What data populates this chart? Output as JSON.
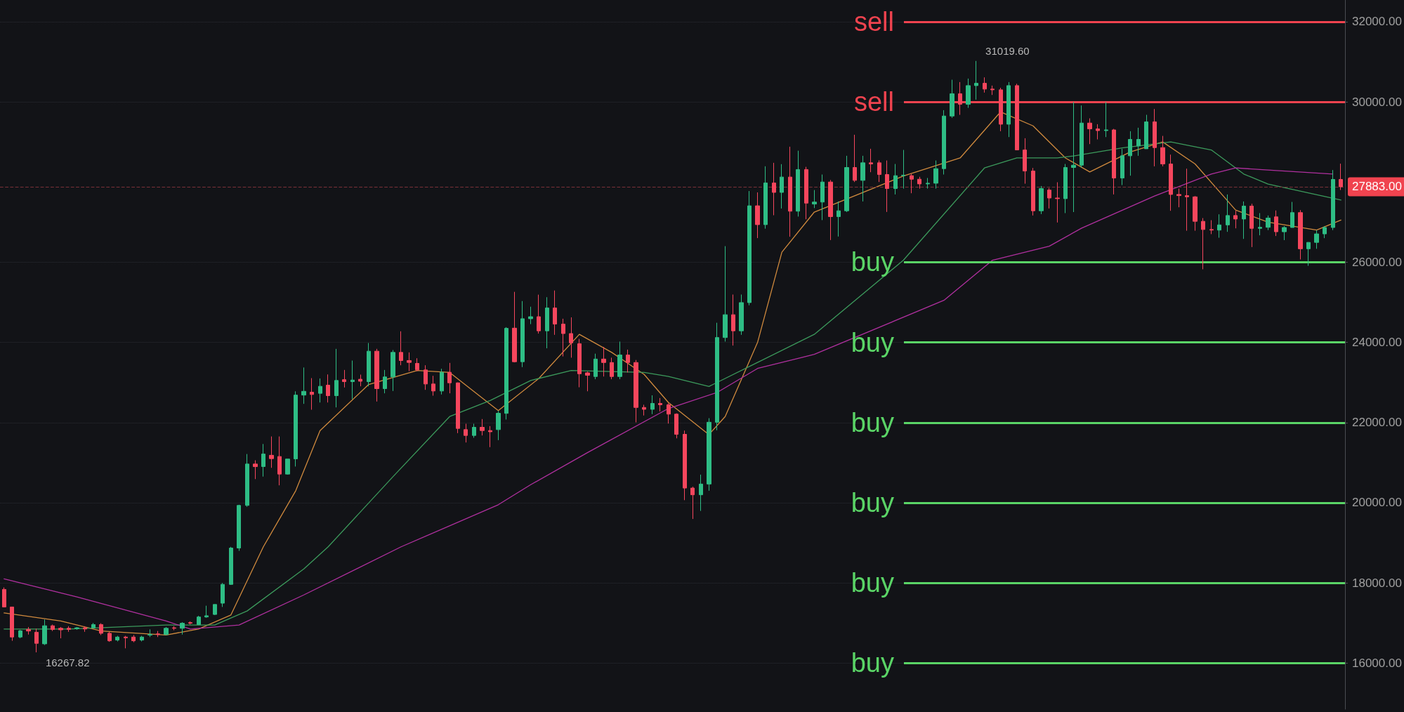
{
  "chart_data": {
    "type": "candlestick",
    "categories": [
      null,
      null,
      null,
      null,
      null,
      null,
      null,
      null,
      null,
      null,
      null,
      null,
      null,
      null,
      null,
      null,
      null,
      null,
      null,
      null,
      null,
      null,
      null,
      null,
      null,
      null,
      null,
      null,
      null,
      null,
      null,
      null,
      null,
      null,
      null,
      null,
      null,
      null,
      null,
      null,
      null,
      null,
      null,
      null,
      null,
      null,
      null,
      null,
      null,
      null,
      null,
      null,
      null,
      null,
      null,
      null,
      null,
      null,
      null,
      null,
      null,
      null,
      null,
      null,
      null,
      null,
      null,
      null,
      null,
      null,
      null,
      null,
      null,
      null,
      null,
      null,
      null,
      null,
      null,
      null,
      null,
      null,
      null,
      null,
      null,
      null,
      null,
      null,
      null,
      null,
      null,
      null,
      null,
      null,
      null,
      null,
      null,
      null,
      null,
      null,
      null,
      null,
      null,
      null,
      null,
      null,
      null,
      null,
      null,
      null,
      null,
      null,
      null,
      null,
      null,
      null,
      null,
      null,
      null,
      null,
      null,
      null,
      null,
      null,
      null,
      null,
      null,
      null,
      null,
      null,
      null,
      null,
      null,
      null,
      null,
      null,
      null,
      null,
      null,
      null,
      null,
      null,
      null,
      null,
      null,
      null,
      null,
      null,
      null,
      null,
      null,
      null,
      null,
      null,
      null,
      null,
      null,
      null,
      null,
      null,
      null,
      null,
      null,
      null,
      null,
      null
    ],
    "ohlc": [
      [
        17838,
        17888,
        17400,
        17400
      ],
      [
        17400,
        17400,
        16556,
        16650
      ],
      [
        16650,
        16830,
        16620,
        16806
      ],
      [
        16840,
        16900,
        16712,
        16800
      ],
      [
        16770,
        16860,
        16267.82,
        16493
      ],
      [
        16480,
        17087,
        16450,
        16931
      ],
      [
        16931,
        16960,
        16800,
        16837
      ],
      [
        16868,
        16900,
        16618,
        16830
      ],
      [
        16868,
        16920,
        16780,
        16840
      ],
      [
        16860,
        16900,
        16830,
        16880
      ],
      [
        16880,
        16920,
        16780,
        16850
      ],
      [
        16880,
        17000,
        16870,
        16962
      ],
      [
        16962,
        16994,
        16700,
        16743
      ],
      [
        16743,
        16780,
        16530,
        16556
      ],
      [
        16574,
        16680,
        16540,
        16650
      ],
      [
        16650,
        16680,
        16368,
        16630
      ],
      [
        16650,
        16700,
        16520,
        16556
      ],
      [
        16574,
        16680,
        16540,
        16650
      ],
      [
        16700,
        16840,
        16650,
        16712
      ],
      [
        16730,
        16800,
        16650,
        16712
      ],
      [
        16712,
        16900,
        16700,
        16868
      ],
      [
        16880,
        16920,
        16820,
        16868
      ],
      [
        16868,
        17020,
        16712,
        16994
      ],
      [
        17010,
        17040,
        16960,
        16994
      ],
      [
        16962,
        17180,
        16950,
        17150
      ],
      [
        17150,
        17431,
        17130,
        17181
      ],
      [
        17213,
        17462,
        17200,
        17462
      ],
      [
        17494,
        18000,
        17400,
        17963
      ],
      [
        17963,
        18900,
        17950,
        18870
      ],
      [
        18870,
        19950,
        18800,
        19933
      ],
      [
        19933,
        21215,
        19900,
        20965
      ],
      [
        20965,
        21059,
        20590,
        20900
      ],
      [
        20903,
        21465,
        20652,
        21215
      ],
      [
        21184,
        21653,
        20871,
        21100
      ],
      [
        21153,
        21653,
        20434,
        20715
      ],
      [
        20715,
        21090,
        20700,
        21090
      ],
      [
        21093,
        22779,
        20903,
        22685
      ],
      [
        22685,
        23373,
        22466,
        22779
      ],
      [
        22758,
        23108,
        22320,
        22700
      ],
      [
        22729,
        23100,
        22500,
        22904
      ],
      [
        22933,
        23200,
        22500,
        22670
      ],
      [
        22670,
        23838,
        22378,
        23050
      ],
      [
        23070,
        23312,
        22875,
        23020
      ],
      [
        23020,
        23546,
        22583,
        23060
      ],
      [
        23080,
        23196,
        22904,
        23030
      ],
      [
        23020,
        23984,
        22904,
        23780
      ],
      [
        23780,
        23838,
        22524,
        22846
      ],
      [
        22846,
        23312,
        22729,
        23137
      ],
      [
        23137,
        23809,
        22787,
        23750
      ],
      [
        23750,
        24276,
        23429,
        23546
      ],
      [
        23546,
        23750,
        23283,
        23500
      ],
      [
        23476,
        23604,
        23283,
        23312
      ],
      [
        23312,
        23429,
        22816,
        22962
      ],
      [
        22962,
        23166,
        22670,
        22787
      ],
      [
        22787,
        23342,
        22700,
        23254
      ],
      [
        23254,
        23488,
        22729,
        22991
      ],
      [
        22991,
        23000,
        21736,
        21853
      ],
      [
        21824,
        21970,
        21503,
        21678
      ],
      [
        21678,
        21970,
        21620,
        21882
      ],
      [
        21882,
        22087,
        21678,
        21800
      ],
      [
        21800,
        21911,
        21386,
        21770
      ],
      [
        21824,
        22291,
        21561,
        22232
      ],
      [
        22230,
        24380,
        22076,
        24350
      ],
      [
        24355,
        25260,
        23500,
        23517
      ],
      [
        23517,
        25030,
        23383,
        24590
      ],
      [
        24590,
        24890,
        24455,
        24640
      ],
      [
        24640,
        25190,
        24220,
        24288
      ],
      [
        24288,
        25127,
        23852,
        24858
      ],
      [
        24858,
        25294,
        24188,
        24456
      ],
      [
        24456,
        24590,
        23650,
        24220
      ],
      [
        24220,
        24624,
        23618,
        23987
      ],
      [
        23967,
        24087,
        22880,
        23216
      ],
      [
        23240,
        23270,
        22780,
        23180
      ],
      [
        23148,
        23718,
        23081,
        23584
      ],
      [
        23584,
        23886,
        23148,
        23497
      ],
      [
        23497,
        23618,
        23081,
        23148
      ],
      [
        23148,
        24020,
        23081,
        23685
      ],
      [
        23685,
        23819,
        23249,
        23497
      ],
      [
        23497,
        23560,
        22004,
        22377
      ],
      [
        22377,
        22444,
        22176,
        22330
      ],
      [
        22330,
        22679,
        22210,
        22478
      ],
      [
        22478,
        22612,
        22277,
        22444
      ],
      [
        22444,
        22480,
        21975,
        22210
      ],
      [
        22210,
        22230,
        21606,
        21707
      ],
      [
        21707,
        21800,
        20064,
        20366
      ],
      [
        20366,
        20400,
        19595,
        20198
      ],
      [
        20198,
        20701,
        19796,
        20466
      ],
      [
        20466,
        22109,
        20299,
        22008
      ],
      [
        22008,
        24489,
        21808,
        24121
      ],
      [
        24121,
        26400,
        24020,
        24690
      ],
      [
        24690,
        25193,
        23920,
        24288
      ],
      [
        24288,
        25193,
        24188,
        24992
      ],
      [
        24992,
        27775,
        24925,
        27406
      ],
      [
        27406,
        27741,
        26601,
        26937
      ],
      [
        26937,
        28392,
        26836,
        27976
      ],
      [
        27976,
        28479,
        27171,
        27741
      ],
      [
        27741,
        28445,
        27339,
        28124
      ],
      [
        28124,
        28881,
        26635,
        27272
      ],
      [
        27272,
        28781,
        27138,
        28311
      ],
      [
        28311,
        28378,
        27071,
        27473
      ],
      [
        27450,
        27800,
        27350,
        27500
      ],
      [
        27500,
        28187,
        27050,
        28000
      ],
      [
        28000,
        28050,
        26552,
        27136
      ],
      [
        27136,
        27515,
        26640,
        27282
      ],
      [
        27282,
        28654,
        27250,
        28362
      ],
      [
        28362,
        29179,
        28000,
        28041
      ],
      [
        28041,
        28654,
        27515,
        28479
      ],
      [
        28479,
        28829,
        28245,
        28450
      ],
      [
        28479,
        28540,
        28000,
        28187
      ],
      [
        28187,
        28537,
        27253,
        27836
      ],
      [
        27836,
        28450,
        27690,
        28158
      ],
      [
        28158,
        28800,
        27835,
        28170
      ],
      [
        28158,
        28200,
        27720,
        28070
      ],
      [
        28070,
        28130,
        27835,
        27953
      ],
      [
        27953,
        28100,
        27835,
        27970
      ],
      [
        27970,
        28537,
        27835,
        28333
      ],
      [
        28333,
        29792,
        28187,
        29646
      ],
      [
        29646,
        30551,
        29600,
        30201
      ],
      [
        30201,
        30493,
        29675,
        29938
      ],
      [
        29938,
        30580,
        29850,
        30405
      ],
      [
        30405,
        31019.6,
        30055,
        30463
      ],
      [
        30463,
        30610,
        30230,
        30318
      ],
      [
        30318,
        30405,
        30172,
        30300
      ],
      [
        30300,
        30350,
        29267,
        29442
      ],
      [
        29442,
        30493,
        29121,
        30405
      ],
      [
        30405,
        30450,
        28800,
        28800
      ],
      [
        28800,
        29092,
        27958,
        28274
      ],
      [
        28274,
        28350,
        27165,
        27282
      ],
      [
        27282,
        27900,
        27200,
        27836
      ],
      [
        27800,
        27850,
        27340,
        27600
      ],
      [
        27600,
        27994,
        26990,
        27585
      ],
      [
        27585,
        28450,
        27224,
        28362
      ],
      [
        28362,
        29997,
        27250,
        28420
      ],
      [
        28420,
        29909,
        28362,
        29471
      ],
      [
        29471,
        29588,
        28946,
        29325
      ],
      [
        29325,
        29442,
        29063,
        29282
      ],
      [
        29282,
        29997,
        29121,
        29300
      ],
      [
        29300,
        29325,
        27690,
        28099
      ],
      [
        28099,
        28829,
        27924,
        28654
      ],
      [
        28654,
        29267,
        28158,
        29063
      ],
      [
        28900,
        29354,
        28654,
        29063
      ],
      [
        28829,
        29676,
        28829,
        29500
      ],
      [
        29500,
        29821,
        28391,
        28858
      ],
      [
        28858,
        29150,
        28391,
        28450
      ],
      [
        28450,
        28683,
        27282,
        27690
      ],
      [
        27690,
        27836,
        27370,
        27660
      ],
      [
        27660,
        28333,
        26785,
        27630
      ],
      [
        27630,
        27650,
        26785,
        27020
      ],
      [
        27020,
        27100,
        25823,
        26815
      ],
      [
        26815,
        27048,
        26700,
        26800
      ],
      [
        26800,
        27194,
        26610,
        26930
      ],
      [
        26930,
        27690,
        26757,
        27165
      ],
      [
        27165,
        27282,
        26844,
        27077
      ],
      [
        27077,
        27515,
        26581,
        27400
      ],
      [
        27400,
        27457,
        26377,
        26844
      ],
      [
        26844,
        27224,
        26670,
        26870
      ],
      [
        26870,
        27165,
        26800,
        27100
      ],
      [
        27131,
        27290,
        26653,
        26759
      ],
      [
        26759,
        26900,
        26550,
        26865
      ],
      [
        26865,
        27503,
        26865,
        27237
      ],
      [
        27237,
        27300,
        26069,
        26334
      ],
      [
        26334,
        26500,
        25910,
        26494
      ],
      [
        26494,
        26800,
        26334,
        26706
      ],
      [
        26706,
        26900,
        26600,
        26865
      ],
      [
        26865,
        28299,
        26800,
        28065
      ],
      [
        28065,
        28458,
        27800,
        27883
      ]
    ],
    "colors": [
      "#f6465d",
      "#f6465d",
      "#2ebd85",
      "#f6465d",
      "#f6465d",
      "#2ebd85",
      "#f6465d",
      "#f6465d",
      "#f6465d",
      "#2ebd85",
      "#f6465d",
      "#2ebd85",
      "#f6465d",
      "#f6465d",
      "#2ebd85",
      "#f6465d",
      "#f6465d",
      "#2ebd85",
      "#2ebd85",
      "#f6465d",
      "#2ebd85",
      "#f6465d",
      "#2ebd85",
      "#f6465d",
      "#2ebd85",
      "#2ebd85",
      "#2ebd85",
      "#2ebd85",
      "#2ebd85",
      "#2ebd85",
      "#2ebd85",
      "#f6465d",
      "#2ebd85",
      "#f6465d",
      "#f6465d",
      "#2ebd85",
      "#2ebd85",
      "#2ebd85",
      "#f6465d",
      "#2ebd85",
      "#f6465d",
      "#2ebd85",
      "#f6465d",
      "#2ebd85",
      "#f6465d",
      "#2ebd85",
      "#f6465d",
      "#2ebd85",
      "#2ebd85",
      "#f6465d",
      "#f6465d",
      "#f6465d",
      "#f6465d",
      "#f6465d",
      "#2ebd85",
      "#f6465d",
      "#f6465d",
      "#f6465d",
      "#2ebd85",
      "#f6465d",
      "#f6465d",
      "#2ebd85",
      "#2ebd85",
      "#f6465d",
      "#2ebd85",
      "#2ebd85",
      "#f6465d",
      "#2ebd85",
      "#f6465d",
      "#f6465d",
      "#f6465d",
      "#f6465d",
      "#f6465d",
      "#2ebd85",
      "#f6465d",
      "#f6465d",
      "#2ebd85",
      "#f6465d",
      "#f6465d",
      "#f6465d",
      "#2ebd85",
      "#f6465d",
      "#f6465d",
      "#f6465d",
      "#f6465d",
      "#f6465d",
      "#2ebd85",
      "#2ebd85",
      "#2ebd85",
      "#2ebd85",
      "#f6465d",
      "#2ebd85",
      "#2ebd85",
      "#f6465d",
      "#2ebd85",
      "#f6465d",
      "#2ebd85",
      "#f6465d",
      "#2ebd85",
      "#f6465d",
      "#2ebd85",
      "#2ebd85",
      "#f6465d",
      "#2ebd85",
      "#2ebd85",
      "#f6465d",
      "#2ebd85",
      "#f6465d",
      "#f6465d",
      "#f6465d",
      "#2ebd85",
      "#2ebd85",
      "#f6465d",
      "#f6465d",
      "#2ebd85",
      "#2ebd85",
      "#2ebd85",
      "#2ebd85",
      "#f6465d",
      "#2ebd85",
      "#2ebd85",
      "#f6465d",
      "#f6465d",
      "#f6465d",
      "#2ebd85",
      "#f6465d",
      "#f6465d",
      "#f6465d",
      "#2ebd85",
      "#f6465d",
      "#f6465d",
      "#2ebd85",
      "#2ebd85",
      "#2ebd85",
      "#f6465d",
      "#f6465d",
      "#2ebd85",
      "#f6465d",
      "#2ebd85",
      "#2ebd85",
      "#2ebd85",
      "#2ebd85",
      "#f6465d",
      "#f6465d",
      "#f6465d",
      "#f6465d",
      "#f6465d",
      "#f6465d",
      "#f6465d",
      "#f6465d",
      "#2ebd85",
      "#2ebd85",
      "#f6465d",
      "#2ebd85",
      "#f6465d",
      "#2ebd85",
      "#2ebd85",
      "#f6465d",
      "#2ebd85",
      "#2ebd85",
      "#f6465d",
      "#2ebd85",
      "#2ebd85",
      "#2ebd85",
      "#2ebd85",
      "#f6465d"
    ],
    "series": [
      {
        "type": "line",
        "color": "#d08a3e",
        "values": [
          17250,
          null,
          null,
          null,
          null,
          null,
          null,
          17050,
          null,
          null,
          null,
          null,
          16800,
          null,
          null,
          null,
          null,
          null,
          null,
          null,
          16700,
          null,
          null,
          null,
          16850,
          null,
          null,
          null,
          17200,
          null,
          null,
          null,
          18900,
          null,
          null,
          null,
          20300,
          null,
          21300,
          21800,
          null,
          null,
          null,
          null,
          null,
          22950,
          null,
          null,
          null,
          null,
          null,
          23300,
          null,
          null,
          null,
          23250,
          null,
          null,
          null,
          null,
          null,
          22300,
          null,
          null,
          null,
          null,
          23100,
          null,
          null,
          null,
          null,
          24200,
          null,
          null,
          null,
          23750,
          null,
          null,
          null,
          23200,
          null,
          null,
          22500,
          null,
          null,
          null,
          null,
          21700,
          null,
          22150,
          null,
          null,
          null,
          24000,
          null,
          null,
          26250,
          null,
          null,
          null,
          27250,
          null,
          null,
          null,
          null,
          null,
          null,
          null,
          null,
          null,
          null,
          28150,
          null,
          null,
          null,
          null,
          null,
          null,
          28600,
          null,
          null,
          null,
          null,
          29750,
          null,
          null,
          null,
          29400,
          null,
          null,
          null,
          28600,
          null,
          null,
          28250,
          null,
          null,
          null,
          null,
          28750,
          null,
          null,
          null,
          29000,
          null,
          null,
          null,
          28450,
          null,
          null,
          null,
          null,
          27300,
          null,
          null,
          null,
          27000,
          null,
          null,
          null,
          null,
          null,
          26800,
          null,
          null,
          27050
        ]
      },
      {
        "type": "line",
        "color": "#3c9a5c",
        "values": [
          16850,
          null,
          null,
          null,
          null,
          null,
          null,
          null,
          16850,
          null,
          null,
          null,
          null,
          null,
          null,
          null,
          null,
          null,
          null,
          null,
          16950,
          null,
          null,
          null,
          null,
          null,
          16950,
          null,
          null,
          null,
          17300,
          null,
          null,
          null,
          null,
          null,
          null,
          18350,
          null,
          null,
          18900,
          null,
          null,
          null,
          null,
          null,
          null,
          null,
          20650,
          null,
          null,
          null,
          null,
          null,
          null,
          22150,
          null,
          null,
          null,
          null,
          22550,
          null,
          null,
          null,
          null,
          23050,
          null,
          null,
          null,
          null,
          23300,
          null,
          null,
          null,
          null,
          null,
          null,
          null,
          null,
          23250,
          null,
          null,
          23150,
          null,
          null,
          null,
          null,
          22900,
          null,
          null,
          null,
          null,
          null,
          23500,
          null,
          null,
          null,
          null,
          null,
          null,
          24200,
          null,
          null,
          null,
          null,
          null,
          null,
          null,
          null,
          null,
          null,
          26050,
          null,
          null,
          null,
          null,
          null,
          null,
          null,
          null,
          null,
          28350,
          null,
          null,
          null,
          28600,
          null,
          null,
          null,
          null,
          28600,
          null,
          28650,
          null,
          null,
          null,
          null,
          null,
          28850,
          null,
          null,
          null,
          null,
          null,
          29000,
          null,
          null,
          null,
          null,
          28800,
          null,
          null,
          null,
          28200,
          null,
          null,
          27950,
          null,
          null,
          null,
          null,
          null,
          null,
          null,
          null,
          27550
        ]
      },
      {
        "type": "line",
        "color": "#b0309f",
        "values": [
          18100,
          null,
          null,
          null,
          null,
          null,
          null,
          null,
          null,
          17650,
          null,
          null,
          null,
          null,
          null,
          null,
          null,
          null,
          null,
          null,
          17050,
          null,
          null,
          16850,
          null,
          null,
          null,
          null,
          null,
          16950,
          null,
          null,
          null,
          null,
          null,
          null,
          null,
          17700,
          null,
          null,
          null,
          null,
          null,
          null,
          null,
          null,
          null,
          null,
          null,
          18900,
          null,
          null,
          null,
          null,
          null,
          null,
          null,
          null,
          null,
          null,
          null,
          19950,
          null,
          null,
          null,
          20450,
          null,
          null,
          null,
          null,
          null,
          null,
          21250,
          null,
          null,
          null,
          null,
          null,
          null,
          null,
          null,
          null,
          22350,
          null,
          null,
          null,
          null,
          null,
          22750,
          null,
          null,
          null,
          null,
          23350,
          null,
          null,
          null,
          null,
          null,
          null,
          23700,
          null,
          null,
          null,
          null,
          null,
          null,
          null,
          null,
          null,
          null,
          null,
          null,
          null,
          null,
          null,
          25050,
          null,
          null,
          null,
          null,
          null,
          26050,
          null,
          null,
          null,
          null,
          null,
          null,
          26400,
          null,
          null,
          null,
          26850,
          null,
          null,
          null,
          null,
          null,
          null,
          null,
          null,
          27650,
          null,
          null,
          null,
          null,
          null,
          null,
          28200,
          null,
          null,
          28350,
          null,
          null,
          null,
          28300,
          null,
          null,
          null,
          null,
          null,
          null,
          null,
          28200,
          null
        ]
      }
    ],
    "ylim": [
      14850,
      32540
    ],
    "yticks": [
      {
        "value": 16000,
        "label": "16000.00"
      },
      {
        "value": 18000,
        "label": "18000.00"
      },
      {
        "value": 20000,
        "label": "20000.00"
      },
      {
        "value": 22000,
        "label": "22000.00"
      },
      {
        "value": 24000,
        "label": "24000.00"
      },
      {
        "value": 26000,
        "label": "26000.00"
      },
      {
        "value": 30000,
        "label": "30000.00"
      },
      {
        "value": 32000,
        "label": "32000.00"
      }
    ],
    "ref_lines": [
      {
        "axis": "y",
        "value": 32000,
        "label": "sell",
        "color": "#f0434f"
      },
      {
        "axis": "y",
        "value": 30000,
        "label": "sell",
        "color": "#f0434f"
      },
      {
        "axis": "y",
        "value": 26000,
        "label": "buy",
        "color": "#5ad466"
      },
      {
        "axis": "y",
        "value": 24000,
        "label": "buy",
        "color": "#5ad466"
      },
      {
        "axis": "y",
        "value": 22000,
        "label": "buy",
        "color": "#5ad466"
      },
      {
        "axis": "y",
        "value": 20000,
        "label": "buy",
        "color": "#5ad466"
      },
      {
        "axis": "y",
        "value": 18000,
        "label": "buy",
        "color": "#5ad466"
      },
      {
        "axis": "y",
        "value": 16000,
        "label": "buy",
        "color": "#5ad466"
      },
      {
        "axis": "y",
        "value": 27883,
        "label": "27883.00",
        "color": "#7a3038",
        "line_style": "dashed"
      }
    ],
    "annotations": [
      "31019.60",
      "16267.82"
    ],
    "grid": "y",
    "tick_labels": "y",
    "marker": "none",
    "line_style": "solid"
  }
}
